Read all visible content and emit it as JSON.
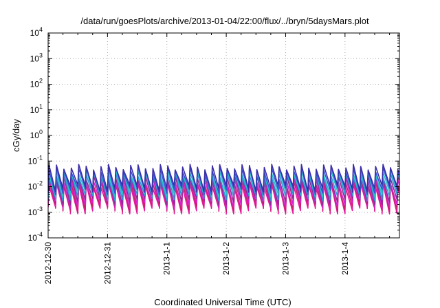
{
  "chart_data": {
    "type": "line",
    "title": "/data/run/goesPlots/archive/2013-01-04/22:00/flux/../bryn/5daysMars.plot",
    "xlabel": "Coordinated Universal Time (UTC)",
    "ylabel": "cGy/day",
    "yscale": "log",
    "ylim": [
      0.0001,
      10000
    ],
    "y_ticks": [
      {
        "base": "10",
        "exp": "-4"
      },
      {
        "base": "10",
        "exp": "-3"
      },
      {
        "base": "10",
        "exp": "-2"
      },
      {
        "base": "10",
        "exp": "-1"
      },
      {
        "base": "10",
        "exp": "0"
      },
      {
        "base": "10",
        "exp": "1"
      },
      {
        "base": "10",
        "exp": "2"
      },
      {
        "base": "10",
        "exp": "3"
      },
      {
        "base": "10",
        "exp": "4"
      }
    ],
    "x_type": "date",
    "xlim": [
      "2012-12-30T00:00",
      "2013-01-04T22:00"
    ],
    "x_tick_labels": [
      "2012-12-30",
      "2012-12-31",
      "2013-1-1",
      "2013-1-2",
      "2013-1-3",
      "2013-1-4"
    ],
    "x_ticks": [
      "2012-12-30",
      "2012-12-31",
      "2013-01-01",
      "2013-01-02",
      "2013-01-03",
      "2013-01-04"
    ],
    "grid": true,
    "sawtooth_period_hours": 3,
    "colors": [
      "#e8179f",
      "#cc1e6e",
      "#d420d0",
      "#8a2c94",
      "#2a96d8",
      "#22c4c4",
      "#3a50d8",
      "#3a2ea8"
    ],
    "series": [
      {
        "color": "#e8179f",
        "values": [
          0.0012,
          0.011
        ]
      },
      {
        "color": "#cc1e6e",
        "values": [
          0.0015,
          0.014
        ]
      },
      {
        "color": "#d420d0",
        "values": [
          0.002,
          0.018
        ]
      },
      {
        "color": "#8a2c94",
        "values": [
          0.0028,
          0.024
        ]
      },
      {
        "color": "#2a96d8",
        "values": [
          0.004,
          0.03
        ]
      },
      {
        "color": "#22c4c4",
        "values": [
          0.0055,
          0.038
        ]
      },
      {
        "color": "#3a50d8",
        "values": [
          0.007,
          0.048
        ]
      },
      {
        "color": "#3a2ea8",
        "values": [
          0.009,
          0.06
        ]
      }
    ]
  }
}
